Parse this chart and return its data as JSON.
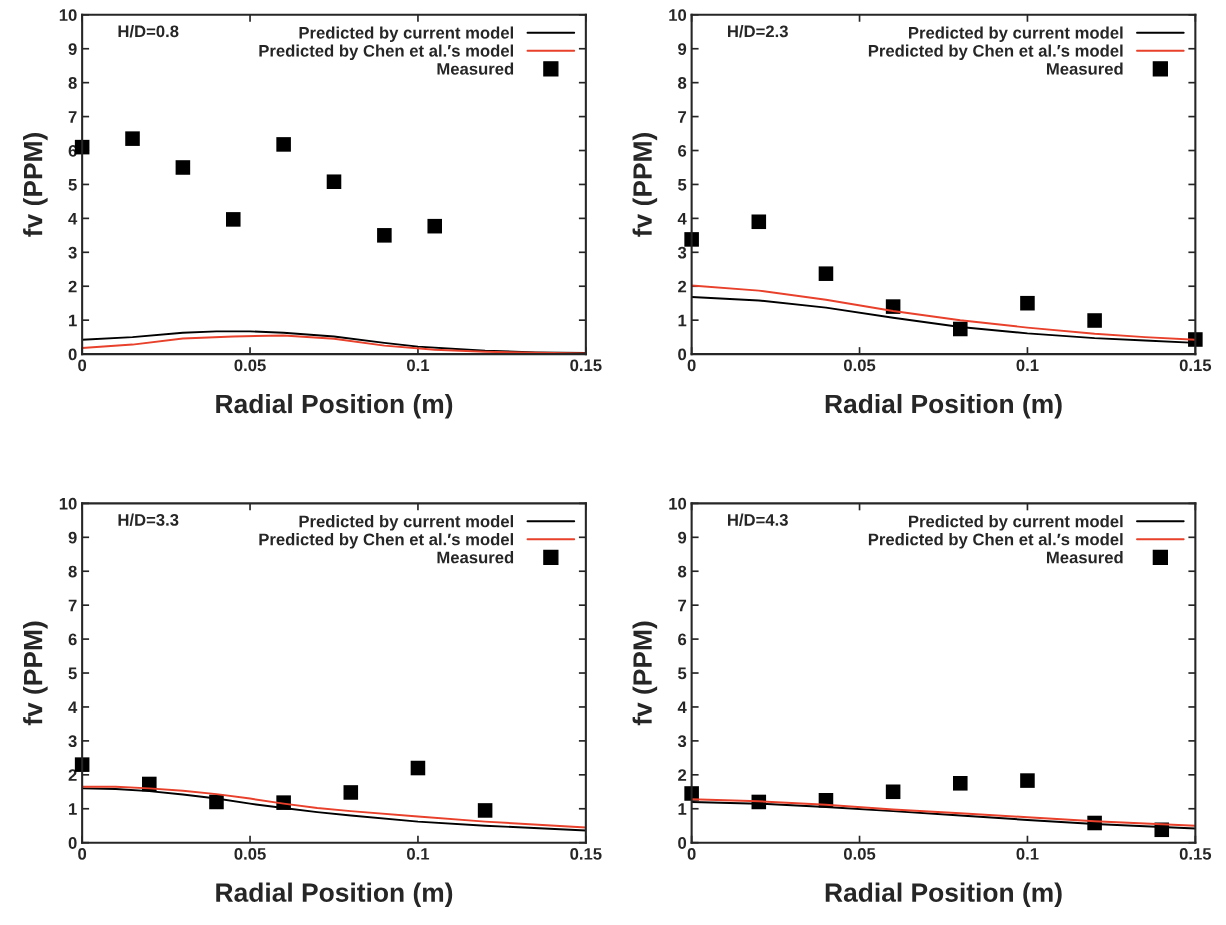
{
  "chart_data": [
    {
      "type": "line",
      "xlabel": "Radial Position (m)",
      "ylabel": "fv (PPM)",
      "annotations": [
        "H/D=0.8"
      ],
      "xlim": [
        0,
        0.15
      ],
      "ylim": [
        0,
        10
      ],
      "xticks": [
        0,
        0.05,
        0.1,
        0.15
      ],
      "yticks": [
        0,
        1,
        2,
        3,
        4,
        5,
        6,
        7,
        8,
        9,
        10
      ],
      "legend": "top right",
      "grid": false,
      "series": [
        {
          "name": "Predicted by current model",
          "type": "line",
          "color": "#000000",
          "line_style": "solid",
          "x": [
            0,
            0.015,
            0.03,
            0.04,
            0.05,
            0.06,
            0.075,
            0.09,
            0.1,
            0.12,
            0.135,
            0.15
          ],
          "values": [
            0.42,
            0.5,
            0.63,
            0.67,
            0.67,
            0.63,
            0.52,
            0.33,
            0.22,
            0.1,
            0.05,
            0.03
          ]
        },
        {
          "name": "Predicted by Chen et al.′s model",
          "type": "line",
          "color": "#e8402a",
          "line_style": "solid",
          "x": [
            0,
            0.015,
            0.03,
            0.045,
            0.06,
            0.075,
            0.09,
            0.105,
            0.12,
            0.135,
            0.15
          ],
          "values": [
            0.18,
            0.28,
            0.46,
            0.52,
            0.55,
            0.45,
            0.25,
            0.13,
            0.07,
            0.04,
            0.02
          ]
        },
        {
          "name": "Measured",
          "type": "scatter",
          "color": "#000000",
          "marker": "square",
          "x": [
            0,
            0.015,
            0.03,
            0.045,
            0.06,
            0.075,
            0.09,
            0.105
          ],
          "values": [
            6.1,
            6.35,
            5.5,
            3.97,
            6.18,
            5.08,
            3.5,
            3.77
          ]
        }
      ]
    },
    {
      "type": "line",
      "xlabel": "Radial Position (m)",
      "ylabel": "fv (PPM)",
      "annotations": [
        "H/D=2.3"
      ],
      "xlim": [
        0,
        0.15
      ],
      "ylim": [
        0,
        10
      ],
      "xticks": [
        0,
        0.05,
        0.1,
        0.15
      ],
      "yticks": [
        0,
        1,
        2,
        3,
        4,
        5,
        6,
        7,
        8,
        9,
        10
      ],
      "legend": "top right",
      "grid": false,
      "series": [
        {
          "name": "Predicted by current model",
          "type": "line",
          "color": "#000000",
          "line_style": "solid",
          "x": [
            0,
            0.02,
            0.04,
            0.06,
            0.08,
            0.1,
            0.12,
            0.135,
            0.15
          ],
          "values": [
            1.68,
            1.58,
            1.37,
            1.07,
            0.8,
            0.61,
            0.47,
            0.4,
            0.33
          ]
        },
        {
          "name": "Predicted by Chen et al.′s model",
          "type": "line",
          "color": "#e8402a",
          "line_style": "solid",
          "x": [
            0,
            0.02,
            0.04,
            0.06,
            0.08,
            0.1,
            0.12,
            0.135,
            0.15
          ],
          "values": [
            2.02,
            1.87,
            1.6,
            1.27,
            1.0,
            0.78,
            0.6,
            0.5,
            0.42
          ]
        },
        {
          "name": "Measured",
          "type": "scatter",
          "color": "#000000",
          "marker": "square",
          "x": [
            0,
            0.02,
            0.04,
            0.06,
            0.08,
            0.1,
            0.12,
            0.15
          ],
          "values": [
            3.38,
            3.9,
            2.37,
            1.4,
            0.74,
            1.5,
            0.99,
            0.43
          ]
        }
      ]
    },
    {
      "type": "line",
      "xlabel": "Radial Position (m)",
      "ylabel": "fv (PPM)",
      "annotations": [
        "H/D=3.3"
      ],
      "xlim": [
        0,
        0.15
      ],
      "ylim": [
        0,
        10
      ],
      "xticks": [
        0,
        0.05,
        0.1,
        0.15
      ],
      "yticks": [
        0,
        1,
        2,
        3,
        4,
        5,
        6,
        7,
        8,
        9,
        10
      ],
      "legend": "top right",
      "grid": false,
      "series": [
        {
          "name": "Predicted by current model",
          "type": "line",
          "color": "#000000",
          "line_style": "solid",
          "x": [
            0,
            0.01,
            0.02,
            0.03,
            0.04,
            0.05,
            0.06,
            0.07,
            0.08,
            0.1,
            0.12,
            0.15
          ],
          "values": [
            1.6,
            1.58,
            1.52,
            1.42,
            1.3,
            1.15,
            1.02,
            0.9,
            0.8,
            0.62,
            0.5,
            0.36
          ]
        },
        {
          "name": "Predicted by Chen et al.′s model",
          "type": "line",
          "color": "#e8402a",
          "line_style": "solid",
          "x": [
            0,
            0.01,
            0.02,
            0.03,
            0.04,
            0.05,
            0.06,
            0.07,
            0.08,
            0.1,
            0.12,
            0.15
          ],
          "values": [
            1.65,
            1.65,
            1.6,
            1.53,
            1.43,
            1.3,
            1.15,
            1.02,
            0.93,
            0.77,
            0.62,
            0.45
          ]
        },
        {
          "name": "Measured",
          "type": "scatter",
          "color": "#000000",
          "marker": "square",
          "x": [
            0,
            0.02,
            0.04,
            0.06,
            0.08,
            0.1,
            0.12
          ],
          "values": [
            2.3,
            1.73,
            1.2,
            1.18,
            1.48,
            2.2,
            0.95
          ]
        }
      ]
    },
    {
      "type": "line",
      "xlabel": "Radial Position (m)",
      "ylabel": "fv (PPM)",
      "annotations": [
        "H/D=4.3"
      ],
      "xlim": [
        0,
        0.15
      ],
      "ylim": [
        0,
        10
      ],
      "xticks": [
        0,
        0.05,
        0.1,
        0.15
      ],
      "yticks": [
        0,
        1,
        2,
        3,
        4,
        5,
        6,
        7,
        8,
        9,
        10
      ],
      "legend": "top right",
      "grid": false,
      "series": [
        {
          "name": "Predicted by current model",
          "type": "line",
          "color": "#000000",
          "line_style": "solid",
          "x": [
            0,
            0.02,
            0.04,
            0.06,
            0.08,
            0.1,
            0.12,
            0.15
          ],
          "values": [
            1.2,
            1.15,
            1.05,
            0.93,
            0.8,
            0.67,
            0.55,
            0.42
          ]
        },
        {
          "name": "Predicted by Chen et al.′s model",
          "type": "line",
          "color": "#e8402a",
          "line_style": "solid",
          "x": [
            0,
            0.02,
            0.04,
            0.06,
            0.08,
            0.1,
            0.12,
            0.15
          ],
          "values": [
            1.28,
            1.22,
            1.12,
            0.98,
            0.87,
            0.75,
            0.63,
            0.5
          ]
        },
        {
          "name": "Measured",
          "type": "scatter",
          "color": "#000000",
          "marker": "square",
          "x": [
            0,
            0.02,
            0.04,
            0.06,
            0.08,
            0.1,
            0.12,
            0.14
          ],
          "values": [
            1.45,
            1.2,
            1.25,
            1.5,
            1.75,
            1.83,
            0.58,
            0.38
          ]
        }
      ]
    }
  ]
}
